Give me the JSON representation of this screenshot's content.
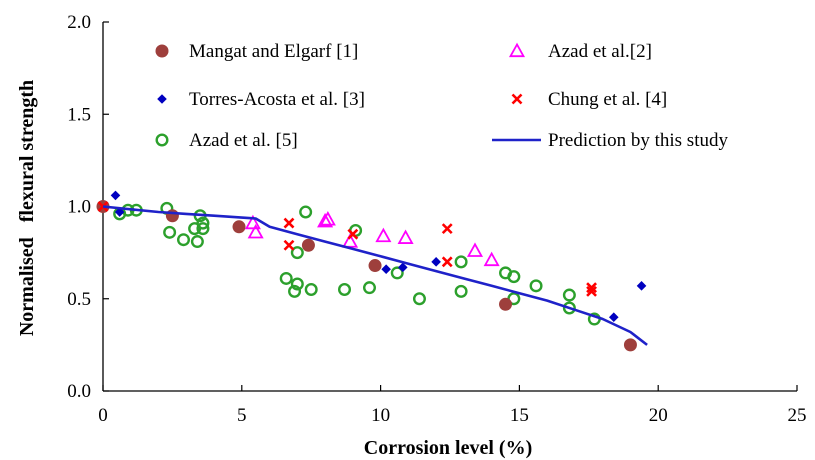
{
  "chart_data": {
    "type": "scatter",
    "title": "",
    "xlabel": "Corrosion level (%)",
    "ylabel": "Normalised   flexural strength",
    "xlim": [
      0,
      25
    ],
    "ylim": [
      0.0,
      2.0
    ],
    "xticks": [
      "0",
      "5",
      "10",
      "15",
      "20",
      "25"
    ],
    "yticks": [
      "0.0",
      "0.5",
      "1.0",
      "1.5",
      "2.0"
    ],
    "xtick_values": [
      0,
      5,
      10,
      15,
      20,
      25
    ],
    "ytick_values": [
      0.0,
      0.5,
      1.0,
      1.5,
      2.0
    ],
    "grid": false,
    "legend_position": "top-inside",
    "series": [
      {
        "name": "Mangat and Elgarf [1]",
        "marker": "filled-circle",
        "color": "#9e3f3c",
        "points": [
          [
            0,
            1.0
          ],
          [
            2.5,
            0.95
          ],
          [
            4.9,
            0.89
          ],
          [
            7.4,
            0.79
          ],
          [
            9.8,
            0.68
          ],
          [
            14.5,
            0.47
          ],
          [
            19.0,
            0.25
          ]
        ]
      },
      {
        "name": "Azad et al.[2]",
        "marker": "open-triangle",
        "color": "#ff00ff",
        "points": [
          [
            5.4,
            0.91
          ],
          [
            5.5,
            0.86
          ],
          [
            8.0,
            0.92
          ],
          [
            8.1,
            0.93
          ],
          [
            8.9,
            0.81
          ],
          [
            10.1,
            0.84
          ],
          [
            10.9,
            0.83
          ],
          [
            13.4,
            0.76
          ],
          [
            14.0,
            0.71
          ]
        ]
      },
      {
        "name": "Torres-Acosta et al. [3]",
        "marker": "diamond",
        "color": "#0000c0",
        "points": [
          [
            0.45,
            1.06
          ],
          [
            0.6,
            0.97
          ],
          [
            10.2,
            0.66
          ],
          [
            10.8,
            0.67
          ],
          [
            12.0,
            0.7
          ],
          [
            18.4,
            0.4
          ],
          [
            19.4,
            0.57
          ]
        ]
      },
      {
        "name": "Chung et al. [4]",
        "marker": "x",
        "color": "#ff0000",
        "points": [
          [
            0,
            1.0
          ],
          [
            6.7,
            0.91
          ],
          [
            6.7,
            0.79
          ],
          [
            12.4,
            0.88
          ],
          [
            12.4,
            0.7
          ],
          [
            17.6,
            0.56
          ],
          [
            17.6,
            0.54
          ],
          [
            9.0,
            0.85
          ]
        ]
      },
      {
        "name": "Azad et al. [5]",
        "marker": "open-circle",
        "color": "#2ca02c",
        "points": [
          [
            0.6,
            0.96
          ],
          [
            0.9,
            0.98
          ],
          [
            1.2,
            0.98
          ],
          [
            2.3,
            0.99
          ],
          [
            2.4,
            0.86
          ],
          [
            2.9,
            0.82
          ],
          [
            3.3,
            0.88
          ],
          [
            3.4,
            0.81
          ],
          [
            3.5,
            0.95
          ],
          [
            3.6,
            0.88
          ],
          [
            3.6,
            0.91
          ],
          [
            6.6,
            0.61
          ],
          [
            6.9,
            0.54
          ],
          [
            7.0,
            0.58
          ],
          [
            7.0,
            0.75
          ],
          [
            7.3,
            0.97
          ],
          [
            7.5,
            0.55
          ],
          [
            8.7,
            0.55
          ],
          [
            9.1,
            0.87
          ],
          [
            9.6,
            0.56
          ],
          [
            10.6,
            0.64
          ],
          [
            11.4,
            0.5
          ],
          [
            12.9,
            0.54
          ],
          [
            12.9,
            0.7
          ],
          [
            14.5,
            0.64
          ],
          [
            14.8,
            0.62
          ],
          [
            14.8,
            0.5
          ],
          [
            15.6,
            0.57
          ],
          [
            16.8,
            0.52
          ],
          [
            16.8,
            0.45
          ],
          [
            17.7,
            0.39
          ]
        ]
      },
      {
        "name": "Prediction by this study",
        "marker": "line",
        "color": "#1f22c9",
        "points": [
          [
            0,
            1.0
          ],
          [
            1,
            0.985
          ],
          [
            2,
            0.97
          ],
          [
            3,
            0.96
          ],
          [
            4,
            0.95
          ],
          [
            5,
            0.94
          ],
          [
            5.5,
            0.935
          ],
          [
            6,
            0.89
          ],
          [
            7,
            0.85
          ],
          [
            8,
            0.81
          ],
          [
            9,
            0.77
          ],
          [
            10,
            0.73
          ],
          [
            11,
            0.69
          ],
          [
            12,
            0.65
          ],
          [
            13,
            0.61
          ],
          [
            14,
            0.57
          ],
          [
            15,
            0.53
          ],
          [
            16,
            0.49
          ],
          [
            17,
            0.44
          ],
          [
            18,
            0.39
          ],
          [
            19,
            0.32
          ],
          [
            19.6,
            0.25
          ]
        ]
      }
    ]
  }
}
